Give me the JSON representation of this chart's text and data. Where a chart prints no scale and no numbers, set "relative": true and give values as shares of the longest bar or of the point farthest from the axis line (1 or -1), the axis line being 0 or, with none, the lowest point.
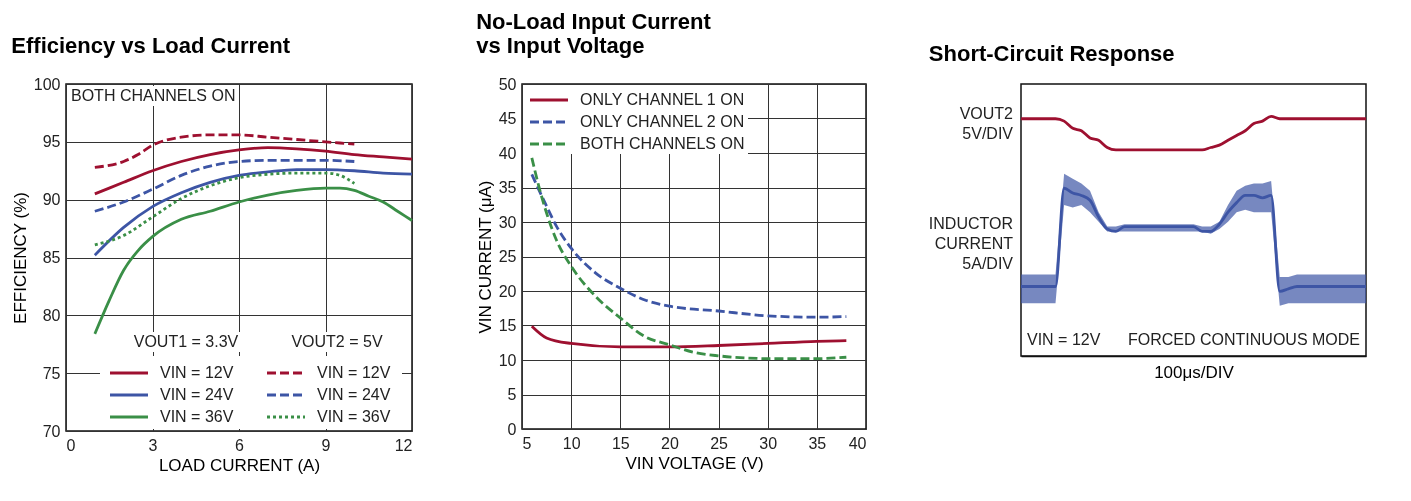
{
  "chart_data": [
    {
      "type": "line",
      "title": "Efficiency vs Load Current",
      "xlabel": "LOAD CURRENT (A)",
      "ylabel": "EFFICIENCY (%)",
      "xlim": [
        0,
        12
      ],
      "xticks": [
        0,
        3,
        6,
        9,
        12
      ],
      "ylim": [
        70,
        100
      ],
      "yticks": [
        70,
        75,
        80,
        85,
        90,
        95,
        100
      ],
      "grid": true,
      "legend": "bottom",
      "annotations": [
        "BOTH CHANNELS ON",
        "VOUT1 = 3.3V",
        "VOUT2 = 5V"
      ],
      "series": [
        {
          "name": "VIN = 12V",
          "color": "#9e1030",
          "line_style": "solid",
          "x": [
            1,
            2,
            3,
            4,
            5,
            6,
            7,
            8,
            9,
            10,
            11,
            12
          ],
          "values": [
            90.5,
            91.5,
            92.5,
            93.3,
            93.9,
            94.3,
            94.5,
            94.4,
            94.2,
            93.9,
            93.7,
            93.5
          ]
        },
        {
          "name": "VIN = 24V",
          "color": "#3d55a5",
          "line_style": "solid",
          "x": [
            1,
            2,
            3,
            4,
            5,
            6,
            7,
            8,
            9,
            10,
            11,
            12
          ],
          "values": [
            85.2,
            87.6,
            89.4,
            90.6,
            91.5,
            92.1,
            92.4,
            92.6,
            92.6,
            92.5,
            92.3,
            92.2
          ]
        },
        {
          "name": "VIN = 36V",
          "color": "#3a8f47",
          "line_style": "solid",
          "x": [
            1,
            1.5,
            2,
            2.5,
            3,
            4,
            5,
            6,
            7,
            8,
            9,
            9.5,
            10,
            10.5,
            11,
            11.5,
            12
          ],
          "values": [
            78.4,
            81.3,
            83.9,
            85.6,
            86.8,
            88.3,
            89.0,
            89.8,
            90.4,
            90.8,
            91.0,
            91.0,
            90.8,
            90.3,
            89.8,
            89.0,
            88.2
          ]
        },
        {
          "name": "VIN = 12V",
          "color": "#9e1030",
          "line_style": "dashed",
          "x": [
            1,
            2,
            2.5,
            3,
            4,
            5,
            6,
            7,
            8,
            9,
            10
          ],
          "values": [
            92.8,
            93.3,
            93.9,
            94.7,
            95.4,
            95.6,
            95.6,
            95.4,
            95.2,
            95.0,
            94.8
          ]
        },
        {
          "name": "VIN = 24V",
          "color": "#3d55a5",
          "line_style": "dashed",
          "x": [
            1,
            2,
            3,
            4,
            5,
            6,
            7,
            8,
            9,
            10
          ],
          "values": [
            89.0,
            89.8,
            90.9,
            92.1,
            92.9,
            93.3,
            93.4,
            93.4,
            93.4,
            93.3
          ]
        },
        {
          "name": "VIN = 36V",
          "color": "#3a8f47",
          "line_style": "dotted",
          "x": [
            1,
            2,
            3,
            4,
            5,
            6,
            7,
            8,
            9,
            9.5,
            10
          ],
          "values": [
            86.1,
            86.9,
            88.5,
            90.1,
            91.2,
            91.9,
            92.2,
            92.3,
            92.3,
            92.1,
            91.4
          ]
        }
      ]
    },
    {
      "type": "line",
      "title": "No-Load Input Current vs Input Voltage",
      "xlabel": "VIN VOLTAGE (V)",
      "ylabel": "VIN CURRENT (μA)",
      "xlim": [
        5,
        40
      ],
      "xticks": [
        5,
        10,
        15,
        20,
        25,
        30,
        35,
        40
      ],
      "ylim": [
        0,
        50
      ],
      "yticks": [
        0,
        5,
        10,
        15,
        20,
        25,
        30,
        35,
        40,
        45,
        50
      ],
      "grid": true,
      "legend": "top left",
      "series": [
        {
          "name": "ONLY CHANNEL 1 ON",
          "color": "#9e1030",
          "line_style": "solid",
          "x": [
            6,
            7.5,
            10,
            15,
            20,
            25,
            30,
            35,
            38
          ],
          "values": [
            14.9,
            13.2,
            12.4,
            11.9,
            11.9,
            12.1,
            12.4,
            12.7,
            12.8
          ]
        },
        {
          "name": "ONLY CHANNEL 2 ON",
          "color": "#3d55a5",
          "line_style": "dashed",
          "x": [
            6,
            7.5,
            8.5,
            10,
            12.5,
            15,
            17.5,
            20,
            25,
            30,
            35,
            38
          ],
          "values": [
            36.9,
            32.3,
            29.4,
            26.2,
            22.6,
            20.4,
            18.7,
            17.8,
            17.1,
            16.4,
            16.2,
            16.3
          ]
        },
        {
          "name": "BOTH CHANNELS ON",
          "color": "#3a8f47",
          "line_style": "dashed",
          "x": [
            6,
            6.8,
            7.5,
            8.5,
            10,
            12.5,
            15,
            17.5,
            20,
            22.5,
            25,
            27.8,
            30,
            35,
            38
          ],
          "values": [
            39.3,
            34.7,
            31.3,
            27.4,
            23.6,
            19.2,
            16.1,
            13.4,
            12.2,
            11.1,
            10.6,
            10.3,
            10.2,
            10.2,
            10.4
          ]
        }
      ]
    },
    {
      "type": "line",
      "title": "Short-Circuit Response",
      "xlabel": "100μs/DIV",
      "relative": true,
      "tick_labels": false,
      "annotations": [
        "VOUT2 5V/DIV",
        "INDUCTOR CURRENT 5A/DIV",
        "VIN = 12V",
        "FORCED CONTINUOUS MODE"
      ],
      "categories": [
        null,
        null,
        null,
        null,
        null,
        null,
        null,
        null,
        null,
        null,
        null,
        null,
        null,
        null,
        null,
        null,
        null,
        null,
        null,
        null,
        null,
        null,
        null,
        null,
        null,
        null,
        null,
        null,
        null,
        null,
        null,
        null,
        null,
        null,
        null,
        null,
        null,
        null,
        null,
        null,
        null
      ],
      "series": [
        {
          "color": "#9e1030",
          "line_style": "solid",
          "values": [
            0.99,
            0.99,
            0.99,
            0.99,
            0.99,
            0.98,
            0.95,
            0.94,
            0.91,
            0.9,
            0.87,
            0.86,
            0.86,
            0.86,
            0.86,
            0.86,
            0.86,
            0.86,
            0.86,
            0.86,
            0.86,
            0.86,
            0.87,
            0.88,
            0.9,
            0.92,
            0.94,
            0.97,
            0.98,
            1.0,
            0.99,
            0.99,
            0.99,
            0.99,
            0.99,
            0.99,
            0.99,
            0.99,
            0.99,
            0.99,
            0.99
          ]
        },
        {
          "color": "#3d55a5",
          "line_style": "solid",
          "values": [
            0.29,
            0.29,
            0.29,
            0.29,
            0.29,
            0.7,
            0.68,
            0.67,
            0.65,
            0.58,
            0.53,
            0.52,
            0.54,
            0.54,
            0.54,
            0.54,
            0.54,
            0.54,
            0.54,
            0.54,
            0.54,
            0.52,
            0.52,
            0.55,
            0.6,
            0.64,
            0.67,
            0.67,
            0.66,
            0.67,
            0.27,
            0.28,
            0.29,
            0.29,
            0.29,
            0.29,
            0.29,
            0.29,
            0.29,
            0.29,
            0.29
          ],
          "lower": [
            0.22,
            0.22,
            0.22,
            0.22,
            0.22,
            0.63,
            0.62,
            0.63,
            0.6,
            0.56,
            0.52,
            0.52,
            0.52,
            0.52,
            0.52,
            0.52,
            0.52,
            0.52,
            0.52,
            0.52,
            0.52,
            0.52,
            0.51,
            0.53,
            0.56,
            0.6,
            0.61,
            0.6,
            0.6,
            0.6,
            0.21,
            0.22,
            0.22,
            0.22,
            0.22,
            0.22,
            0.22,
            0.22,
            0.22,
            0.22,
            0.22
          ],
          "upper": [
            0.34,
            0.34,
            0.34,
            0.34,
            0.34,
            0.76,
            0.74,
            0.72,
            0.69,
            0.6,
            0.54,
            0.54,
            0.55,
            0.55,
            0.55,
            0.55,
            0.55,
            0.55,
            0.55,
            0.55,
            0.55,
            0.54,
            0.54,
            0.56,
            0.63,
            0.69,
            0.71,
            0.72,
            0.72,
            0.73,
            0.33,
            0.33,
            0.34,
            0.34,
            0.34,
            0.34,
            0.34,
            0.34,
            0.34,
            0.34,
            0.34
          ]
        }
      ]
    }
  ]
}
